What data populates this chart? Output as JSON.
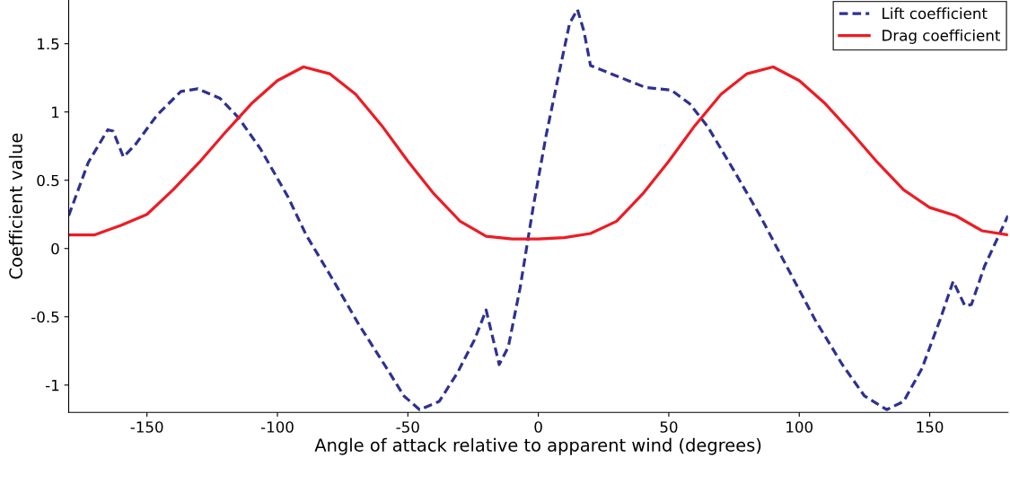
{
  "chart_data": {
    "type": "line",
    "xlabel": "Angle of attack relative to apparent wind (degrees)",
    "ylabel": "Coefficient value",
    "xlim": [
      -180,
      180
    ],
    "ylim": [
      -1.2,
      1.82
    ],
    "xticks": [
      -150,
      -100,
      -50,
      0,
      50,
      100,
      150
    ],
    "yticks": [
      -1,
      -0.5,
      0,
      0.5,
      1,
      1.5
    ],
    "grid": false,
    "legend": "top right",
    "series": [
      {
        "name": "Lift coefficient",
        "color": "#2e3192",
        "line_style": "dashed",
        "x": [
          -180,
          -172.5,
          -165,
          -163,
          -159,
          -154.5,
          -146,
          -137,
          -130.5,
          -122,
          -115,
          -106.5,
          -96,
          -89,
          -79,
          -69,
          -58,
          -51.5,
          -45.5,
          -38,
          -31,
          -24.5,
          -20,
          -15,
          -11.5,
          -7,
          -2,
          3,
          8,
          12,
          15,
          17.5,
          20,
          30.5,
          41,
          51,
          58,
          65,
          75,
          85,
          96,
          106,
          116.5,
          125,
          133.5,
          140,
          147,
          154,
          159,
          163.5,
          166,
          171,
          180
        ],
        "values": [
          0.24,
          0.63,
          0.87,
          0.86,
          0.67,
          0.76,
          0.98,
          1.15,
          1.17,
          1.1,
          0.96,
          0.73,
          0.38,
          0.1,
          -0.22,
          -0.55,
          -0.88,
          -1.08,
          -1.18,
          -1.12,
          -0.91,
          -0.67,
          -0.45,
          -0.85,
          -0.72,
          -0.29,
          0.3,
          0.83,
          1.29,
          1.65,
          1.75,
          1.59,
          1.34,
          1.26,
          1.18,
          1.16,
          1.06,
          0.89,
          0.57,
          0.24,
          -0.16,
          -0.52,
          -0.85,
          -1.08,
          -1.18,
          -1.12,
          -0.88,
          -0.52,
          -0.24,
          -0.42,
          -0.41,
          -0.13,
          0.24
        ]
      },
      {
        "name": "Drag coefficient",
        "color": "#ed1c24",
        "line_style": "solid",
        "x": [
          -180,
          -170,
          -160,
          -150,
          -140,
          -130,
          -120,
          -110,
          -100,
          -90,
          -80,
          -70,
          -60,
          -50,
          -40,
          -30,
          -20,
          -10,
          0,
          10,
          20,
          30,
          40,
          50,
          60,
          70,
          80,
          90,
          100,
          110,
          120,
          130,
          140,
          150,
          160,
          170,
          180
        ],
        "values": [
          0.1,
          0.1,
          0.17,
          0.25,
          0.43,
          0.63,
          0.85,
          1.06,
          1.23,
          1.33,
          1.28,
          1.13,
          0.9,
          0.64,
          0.4,
          0.2,
          0.09,
          0.07,
          0.07,
          0.08,
          0.11,
          0.2,
          0.4,
          0.64,
          0.9,
          1.13,
          1.28,
          1.33,
          1.23,
          1.06,
          0.85,
          0.63,
          0.43,
          0.3,
          0.24,
          0.13,
          0.1
        ]
      }
    ]
  }
}
